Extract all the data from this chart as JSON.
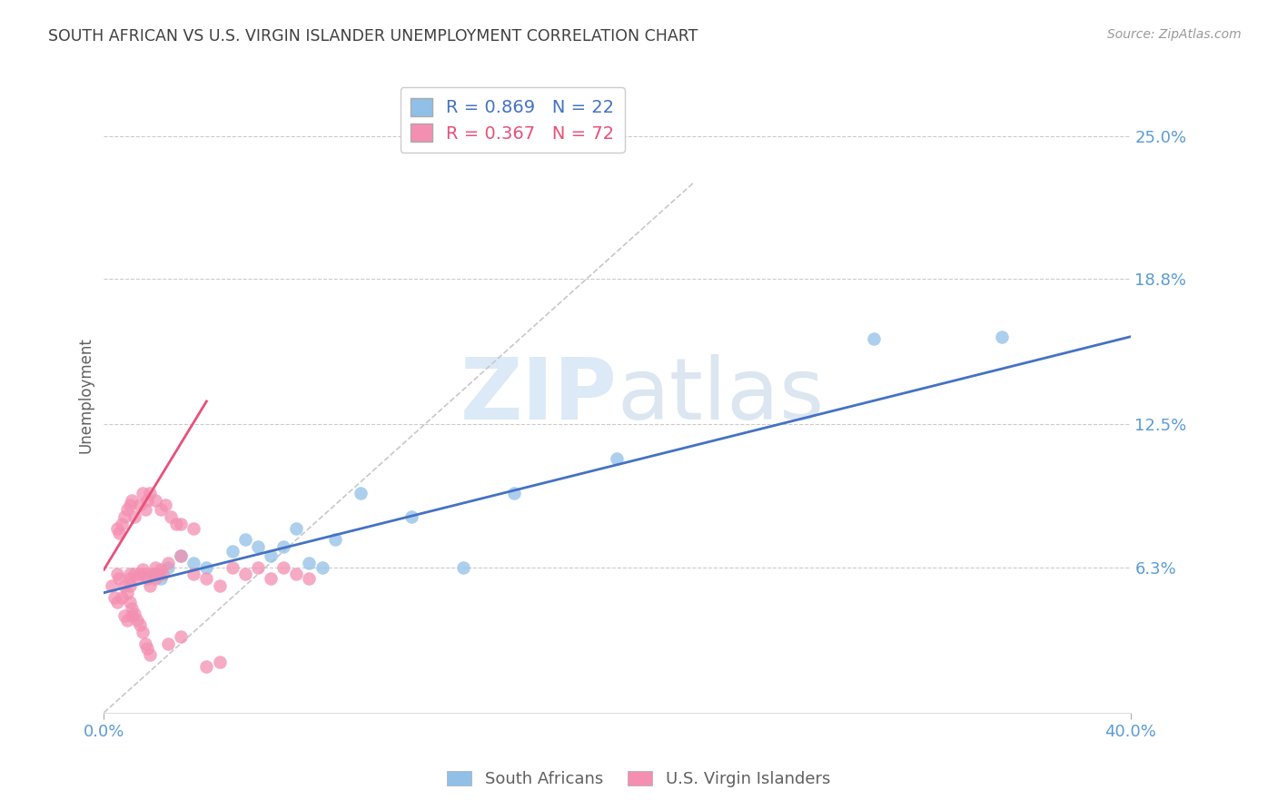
{
  "title": "SOUTH AFRICAN VS U.S. VIRGIN ISLANDER UNEMPLOYMENT CORRELATION CHART",
  "source": "Source: ZipAtlas.com",
  "ylabel": "Unemployment",
  "x_min": 0.0,
  "x_max": 0.4,
  "y_min": 0.0,
  "y_max": 0.275,
  "y_tick_labels_right": [
    [
      "6.3%",
      0.063
    ],
    [
      "12.5%",
      0.125
    ],
    [
      "18.8%",
      0.188
    ],
    [
      "25.0%",
      0.25
    ]
  ],
  "watermark_zip": "ZIP",
  "watermark_atlas": "atlas",
  "legend_blue_r": "0.869",
  "legend_blue_n": "22",
  "legend_pink_r": "0.367",
  "legend_pink_n": "72",
  "legend_label_blue": "South Africans",
  "legend_label_pink": "U.S. Virgin Islanders",
  "color_blue": "#90C0E8",
  "color_pink": "#F48FB1",
  "color_line_blue": "#4472C4",
  "color_line_pink": "#E8507A",
  "color_line_diag": "#C8C8C8",
  "color_title": "#404040",
  "color_right_labels": "#5B9BD5",
  "color_bottom_labels": "#5B9BD5",
  "blue_scatter_x": [
    0.02,
    0.022,
    0.025,
    0.03,
    0.035,
    0.04,
    0.05,
    0.055,
    0.06,
    0.065,
    0.07,
    0.075,
    0.08,
    0.085,
    0.09,
    0.1,
    0.12,
    0.14,
    0.16,
    0.2,
    0.3,
    0.35
  ],
  "blue_scatter_y": [
    0.06,
    0.058,
    0.063,
    0.068,
    0.065,
    0.063,
    0.07,
    0.075,
    0.072,
    0.068,
    0.072,
    0.08,
    0.065,
    0.063,
    0.075,
    0.095,
    0.085,
    0.063,
    0.095,
    0.11,
    0.162,
    0.163
  ],
  "pink_scatter_x": [
    0.003,
    0.004,
    0.005,
    0.005,
    0.006,
    0.007,
    0.008,
    0.008,
    0.009,
    0.009,
    0.01,
    0.01,
    0.01,
    0.01,
    0.011,
    0.011,
    0.012,
    0.012,
    0.013,
    0.013,
    0.014,
    0.014,
    0.015,
    0.015,
    0.016,
    0.016,
    0.017,
    0.017,
    0.018,
    0.018,
    0.019,
    0.02,
    0.02,
    0.021,
    0.022,
    0.023,
    0.025,
    0.025,
    0.03,
    0.03,
    0.035,
    0.04,
    0.045,
    0.05,
    0.055,
    0.06,
    0.065,
    0.07,
    0.075,
    0.08,
    0.005,
    0.006,
    0.007,
    0.008,
    0.009,
    0.01,
    0.011,
    0.012,
    0.014,
    0.015,
    0.016,
    0.017,
    0.018,
    0.02,
    0.022,
    0.024,
    0.026,
    0.028,
    0.03,
    0.035,
    0.04,
    0.045
  ],
  "pink_scatter_y": [
    0.055,
    0.05,
    0.06,
    0.048,
    0.058,
    0.05,
    0.055,
    0.042,
    0.052,
    0.04,
    0.06,
    0.058,
    0.055,
    0.048,
    0.045,
    0.042,
    0.06,
    0.043,
    0.058,
    0.04,
    0.06,
    0.038,
    0.062,
    0.035,
    0.06,
    0.03,
    0.058,
    0.028,
    0.055,
    0.025,
    0.06,
    0.063,
    0.058,
    0.06,
    0.062,
    0.06,
    0.065,
    0.03,
    0.068,
    0.033,
    0.06,
    0.058,
    0.055,
    0.063,
    0.06,
    0.063,
    0.058,
    0.063,
    0.06,
    0.058,
    0.08,
    0.078,
    0.082,
    0.085,
    0.088,
    0.09,
    0.092,
    0.085,
    0.09,
    0.095,
    0.088,
    0.092,
    0.095,
    0.092,
    0.088,
    0.09,
    0.085,
    0.082,
    0.082,
    0.08,
    0.02,
    0.022
  ],
  "blue_line_x": [
    0.0,
    0.4
  ],
  "blue_line_y": [
    0.052,
    0.163
  ],
  "pink_line_x": [
    0.0,
    0.04
  ],
  "pink_line_y": [
    0.062,
    0.135
  ],
  "diag_line_x": [
    0.0,
    0.23
  ],
  "diag_line_y": [
    0.0,
    0.23
  ]
}
